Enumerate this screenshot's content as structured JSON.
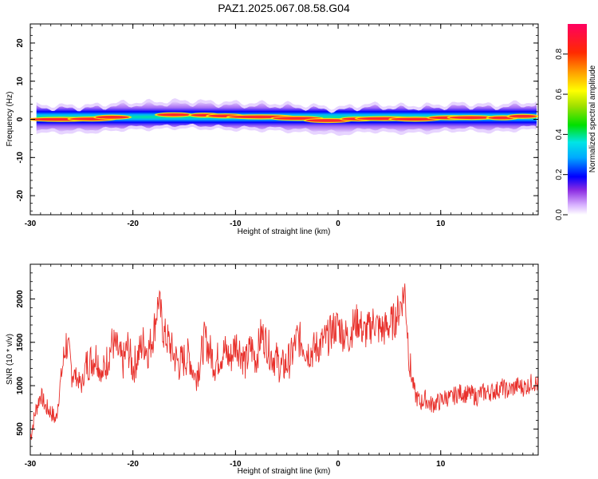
{
  "title": "PAZ1.2025.067.08.58.G04",
  "colors": {
    "snr_line": "#e8302b",
    "frame": "#000000",
    "background": "#ffffff"
  },
  "chart_data": [
    {
      "type": "heatmap",
      "xlabel": "Height of straight line (km)",
      "ylabel": "Frequency (Hz)",
      "xlim": [
        -30,
        19.5
      ],
      "ylim": [
        -25,
        25
      ],
      "x_ticks": [
        "-30",
        "-20",
        "-10",
        "0",
        "10"
      ],
      "y_ticks": [
        "20",
        "10",
        "0",
        "-10",
        "-20"
      ],
      "colorbar": {
        "label": "Normalized spectral amplitude",
        "range": [
          0,
          0.95
        ],
        "ticks": [
          "0.0",
          "0.2",
          "0.4",
          "0.6",
          "0.8"
        ]
      },
      "ridge_center_hz": [
        [
          -29.5,
          0.2
        ],
        [
          -27,
          0.0
        ],
        [
          -24,
          0.1
        ],
        [
          -21,
          0.8
        ],
        [
          -18,
          1.0
        ],
        [
          -15,
          1.3
        ],
        [
          -12,
          1.0
        ],
        [
          -9,
          0.7
        ],
        [
          -6,
          0.6
        ],
        [
          -3,
          0.1
        ],
        [
          0,
          -0.5
        ],
        [
          3,
          0.4
        ],
        [
          6,
          0.0
        ],
        [
          9,
          0.1
        ],
        [
          12,
          0.6
        ],
        [
          15,
          0.2
        ],
        [
          18,
          0.8
        ],
        [
          19.5,
          1.0
        ]
      ]
    },
    {
      "type": "line",
      "xlabel": "Height of straight line (km)",
      "ylabel": "SNR (10 * v/v)",
      "xlim": [
        -30,
        19.5
      ],
      "ylim": [
        200,
        2400
      ],
      "x_ticks": [
        "-30",
        "-20",
        "-10",
        "0",
        "10"
      ],
      "y_ticks": [
        "2000",
        "1500",
        "1000",
        "500"
      ],
      "series": [
        {
          "x": [
            -30,
            -29.5,
            -29,
            -28.5,
            -28,
            -27.5,
            -27,
            -26.5,
            -26,
            -25.5,
            -25,
            -24.5,
            -24,
            -23.5,
            -23,
            -22.5,
            -22,
            -21.5,
            -21,
            -20.5,
            -20,
            -19.5,
            -19,
            -18.5,
            -18,
            -17.5,
            -17,
            -16.5,
            -16,
            -15.5,
            -15,
            -14.5,
            -14,
            -13.5,
            -13,
            -12.5,
            -12,
            -11.5,
            -11,
            -10.5,
            -10,
            -9.5,
            -9,
            -8.5,
            -8,
            -7.5,
            -7,
            -6.5,
            -6,
            -5.5,
            -5,
            -4.5,
            -4,
            -3.5,
            -3,
            -2.5,
            -2,
            -1.5,
            -1,
            -0.5,
            0,
            0.5,
            1,
            1.5,
            2,
            2.5,
            3,
            3.5,
            4,
            4.5,
            5,
            5.5,
            6,
            6.5,
            7,
            7.5,
            8,
            8.5,
            9,
            9.5,
            10,
            10.5,
            11,
            11.5,
            12,
            12.5,
            13,
            13.5,
            14,
            14.5,
            15,
            15.5,
            16,
            16.5,
            17,
            17.5,
            18,
            18.5,
            19,
            19.5
          ],
          "values": [
            400,
            700,
            900,
            750,
            700,
            600,
            1100,
            1500,
            1200,
            1100,
            1000,
            1250,
            1300,
            1350,
            1100,
            1300,
            1500,
            1400,
            1250,
            1450,
            1200,
            1350,
            1500,
            1400,
            1600,
            2000,
            1600,
            1500,
            1350,
            1250,
            1300,
            1350,
            1100,
            1250,
            1550,
            1400,
            1250,
            1350,
            1400,
            1300,
            1500,
            1400,
            1250,
            1450,
            1300,
            1600,
            1500,
            1350,
            1300,
            1200,
            1250,
            1350,
            1550,
            1500,
            1400,
            1400,
            1450,
            1500,
            1550,
            1650,
            1700,
            1600,
            1550,
            1700,
            1750,
            1600,
            1650,
            1750,
            1650,
            1650,
            1700,
            1750,
            1900,
            2100,
            1200,
            900,
            800,
            850,
            780,
            800,
            820,
            870,
            850,
            900,
            920,
            900,
            900,
            870,
            920,
            920,
            930,
            950,
            980,
            940,
            970,
            1000,
            980,
            1000,
            1050,
            1000
          ]
        }
      ]
    }
  ]
}
